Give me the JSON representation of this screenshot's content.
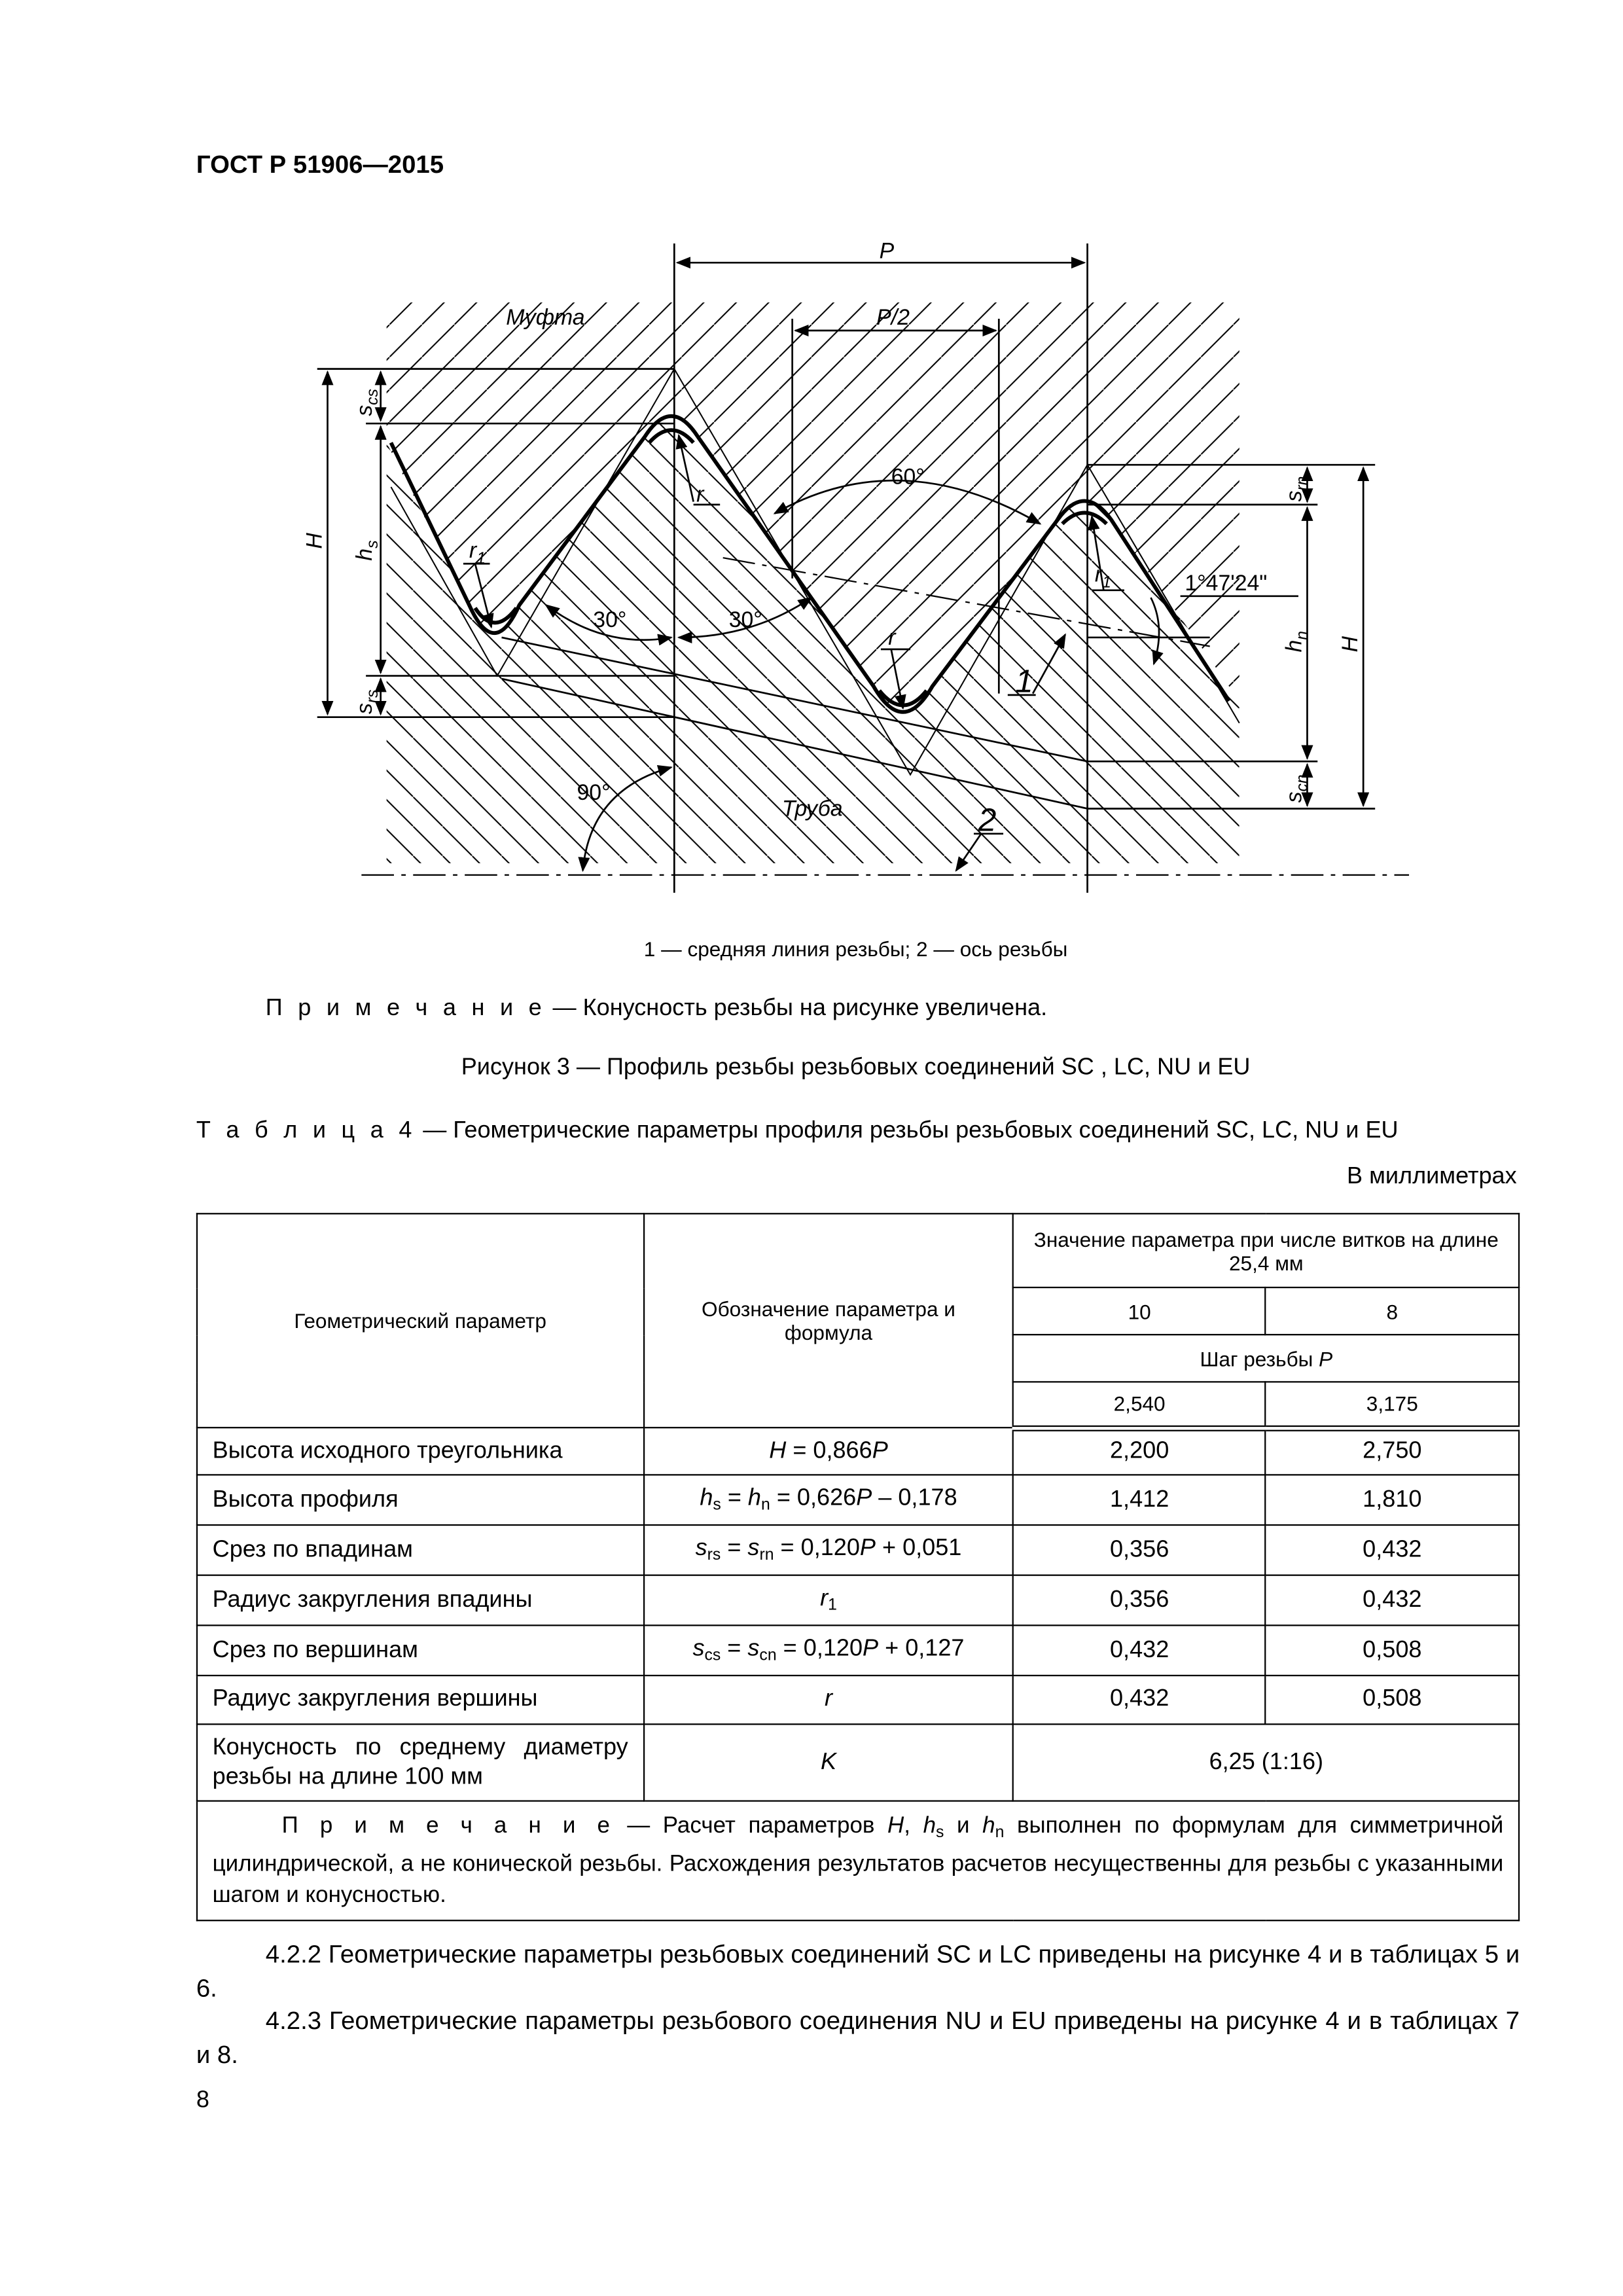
{
  "header": {
    "doc_id": "ГОСТ Р 51906—2015"
  },
  "figure": {
    "labels": {
      "P": "P",
      "P_half": "P/2",
      "muff": "Муфта",
      "pipe": "Труба",
      "angle60": "60°",
      "angle30_left": "30°",
      "angle30_right": "30°",
      "angle90": "90°",
      "taper_angle": "1°47'24\"",
      "callout1": "1",
      "callout2": "2",
      "r_top": "r",
      "r_bottom": "r",
      "r1_left": "r",
      "r1_left_sub": "1",
      "r1_right": "r",
      "r1_right_sub": "1",
      "H_left": "H",
      "H_right": "H",
      "hs": "h",
      "hs_sub": "s",
      "hn": "h",
      "hn_sub": "n",
      "scs": "s",
      "scs_sub": "cs",
      "srs": "s",
      "srs_sub": "rs",
      "srn": "s",
      "srn_sub": "rn",
      "scn": "s",
      "scn_sub": "cn"
    },
    "legend": "1 — средняя линия резьбы; 2 — ось резьбы",
    "note_label": "П р и м е ч а н и е",
    "note_text": " — Конусность резьбы на рисунке увеличена.",
    "title": "Рисунок 3 — Профиль резьбы резьбовых соединений SC , LC, NU и EU"
  },
  "table": {
    "label": "Т а б л и ц а  4",
    "title": " — Геометрические параметры профиля резьбы резьбовых соединений SC, LC, NU и EU",
    "units": "В миллиметрах",
    "headers": {
      "param": "Геометрический параметр",
      "formula": "Обозначение параметра и формула",
      "value_group": "Значение параметра при числе витков на длине 25,4 мм",
      "turns": [
        "10",
        "8"
      ],
      "pitch": "Шаг резьбы ",
      "pitch_sym": "P",
      "pitch_values": [
        "2,540",
        "3,175"
      ]
    },
    "rows": [
      {
        "param": "Высота исходного треугольника",
        "formula": [
          {
            "t": "H",
            "i": true
          },
          {
            "t": " = 0,866"
          },
          {
            "t": "P",
            "i": true
          }
        ],
        "v10": "2,200",
        "v8": "2,750"
      },
      {
        "param": "Высота профиля",
        "formula": [
          {
            "t": "h",
            "i": true
          },
          {
            "t": "s",
            "sub": true
          },
          {
            "t": " = "
          },
          {
            "t": "h",
            "i": true
          },
          {
            "t": "n",
            "sub": true
          },
          {
            "t": " = 0,626"
          },
          {
            "t": "P",
            "i": true
          },
          {
            "t": " – 0,178"
          }
        ],
        "v10": "1,412",
        "v8": "1,810"
      },
      {
        "param": "Срез по впадинам",
        "formula": [
          {
            "t": "s",
            "i": true
          },
          {
            "t": "rs",
            "sub": true
          },
          {
            "t": " = "
          },
          {
            "t": "s",
            "i": true
          },
          {
            "t": "rn",
            "sub": true
          },
          {
            "t": " = 0,120"
          },
          {
            "t": "P",
            "i": true
          },
          {
            "t": " + 0,051"
          }
        ],
        "v10": "0,356",
        "v8": "0,432"
      },
      {
        "param": "Радиус закругления впадины",
        "formula": [
          {
            "t": "r",
            "i": true
          },
          {
            "t": "1",
            "sub": true
          }
        ],
        "v10": "0,356",
        "v8": "0,432"
      },
      {
        "param": "Срез по вершинам",
        "formula": [
          {
            "t": "s",
            "i": true
          },
          {
            "t": "cs",
            "sub": true
          },
          {
            "t": " = "
          },
          {
            "t": "s",
            "i": true
          },
          {
            "t": "cn",
            "sub": true
          },
          {
            "t": " = 0,120"
          },
          {
            "t": "P",
            "i": true
          },
          {
            "t": " + 0,127"
          }
        ],
        "v10": "0,432",
        "v8": "0,508"
      },
      {
        "param": "Радиус закругления вершины",
        "formula": [
          {
            "t": "r",
            "i": true
          }
        ],
        "v10": "0,432",
        "v8": "0,508"
      }
    ],
    "taper_row": {
      "param": "Конусность по среднему диаметру резьбы на длине 100 мм",
      "formula": [
        {
          "t": "K",
          "i": true
        }
      ],
      "value": "6,25 (1:16)"
    },
    "note": [
      {
        "t": "П р и м е ч а н и е",
        "sp": true
      },
      {
        "t": " — Расчет параметров "
      },
      {
        "t": "H",
        "i": true
      },
      {
        "t": ", "
      },
      {
        "t": "h",
        "i": true
      },
      {
        "t": "s",
        "sub": true
      },
      {
        "t": " и "
      },
      {
        "t": "h",
        "i": true
      },
      {
        "t": "n",
        "sub": true
      },
      {
        "t": " выполнен по формулам для симметричной цилиндрической, а не конической резьбы. Расхождения результатов расчетов несущественны для резьбы с указанными шагом и конусностью."
      }
    ]
  },
  "paragraphs": [
    "4.2.2 Геометрические параметры резьбовых соединений SC и LC приведены на рисунке 4 и в таблицах 5 и 6.",
    "4.2.3 Геометрические параметры резьбового соединения NU и EU приведены на рисунке 4 и в таблицах 7 и 8."
  ],
  "page_number": "8"
}
